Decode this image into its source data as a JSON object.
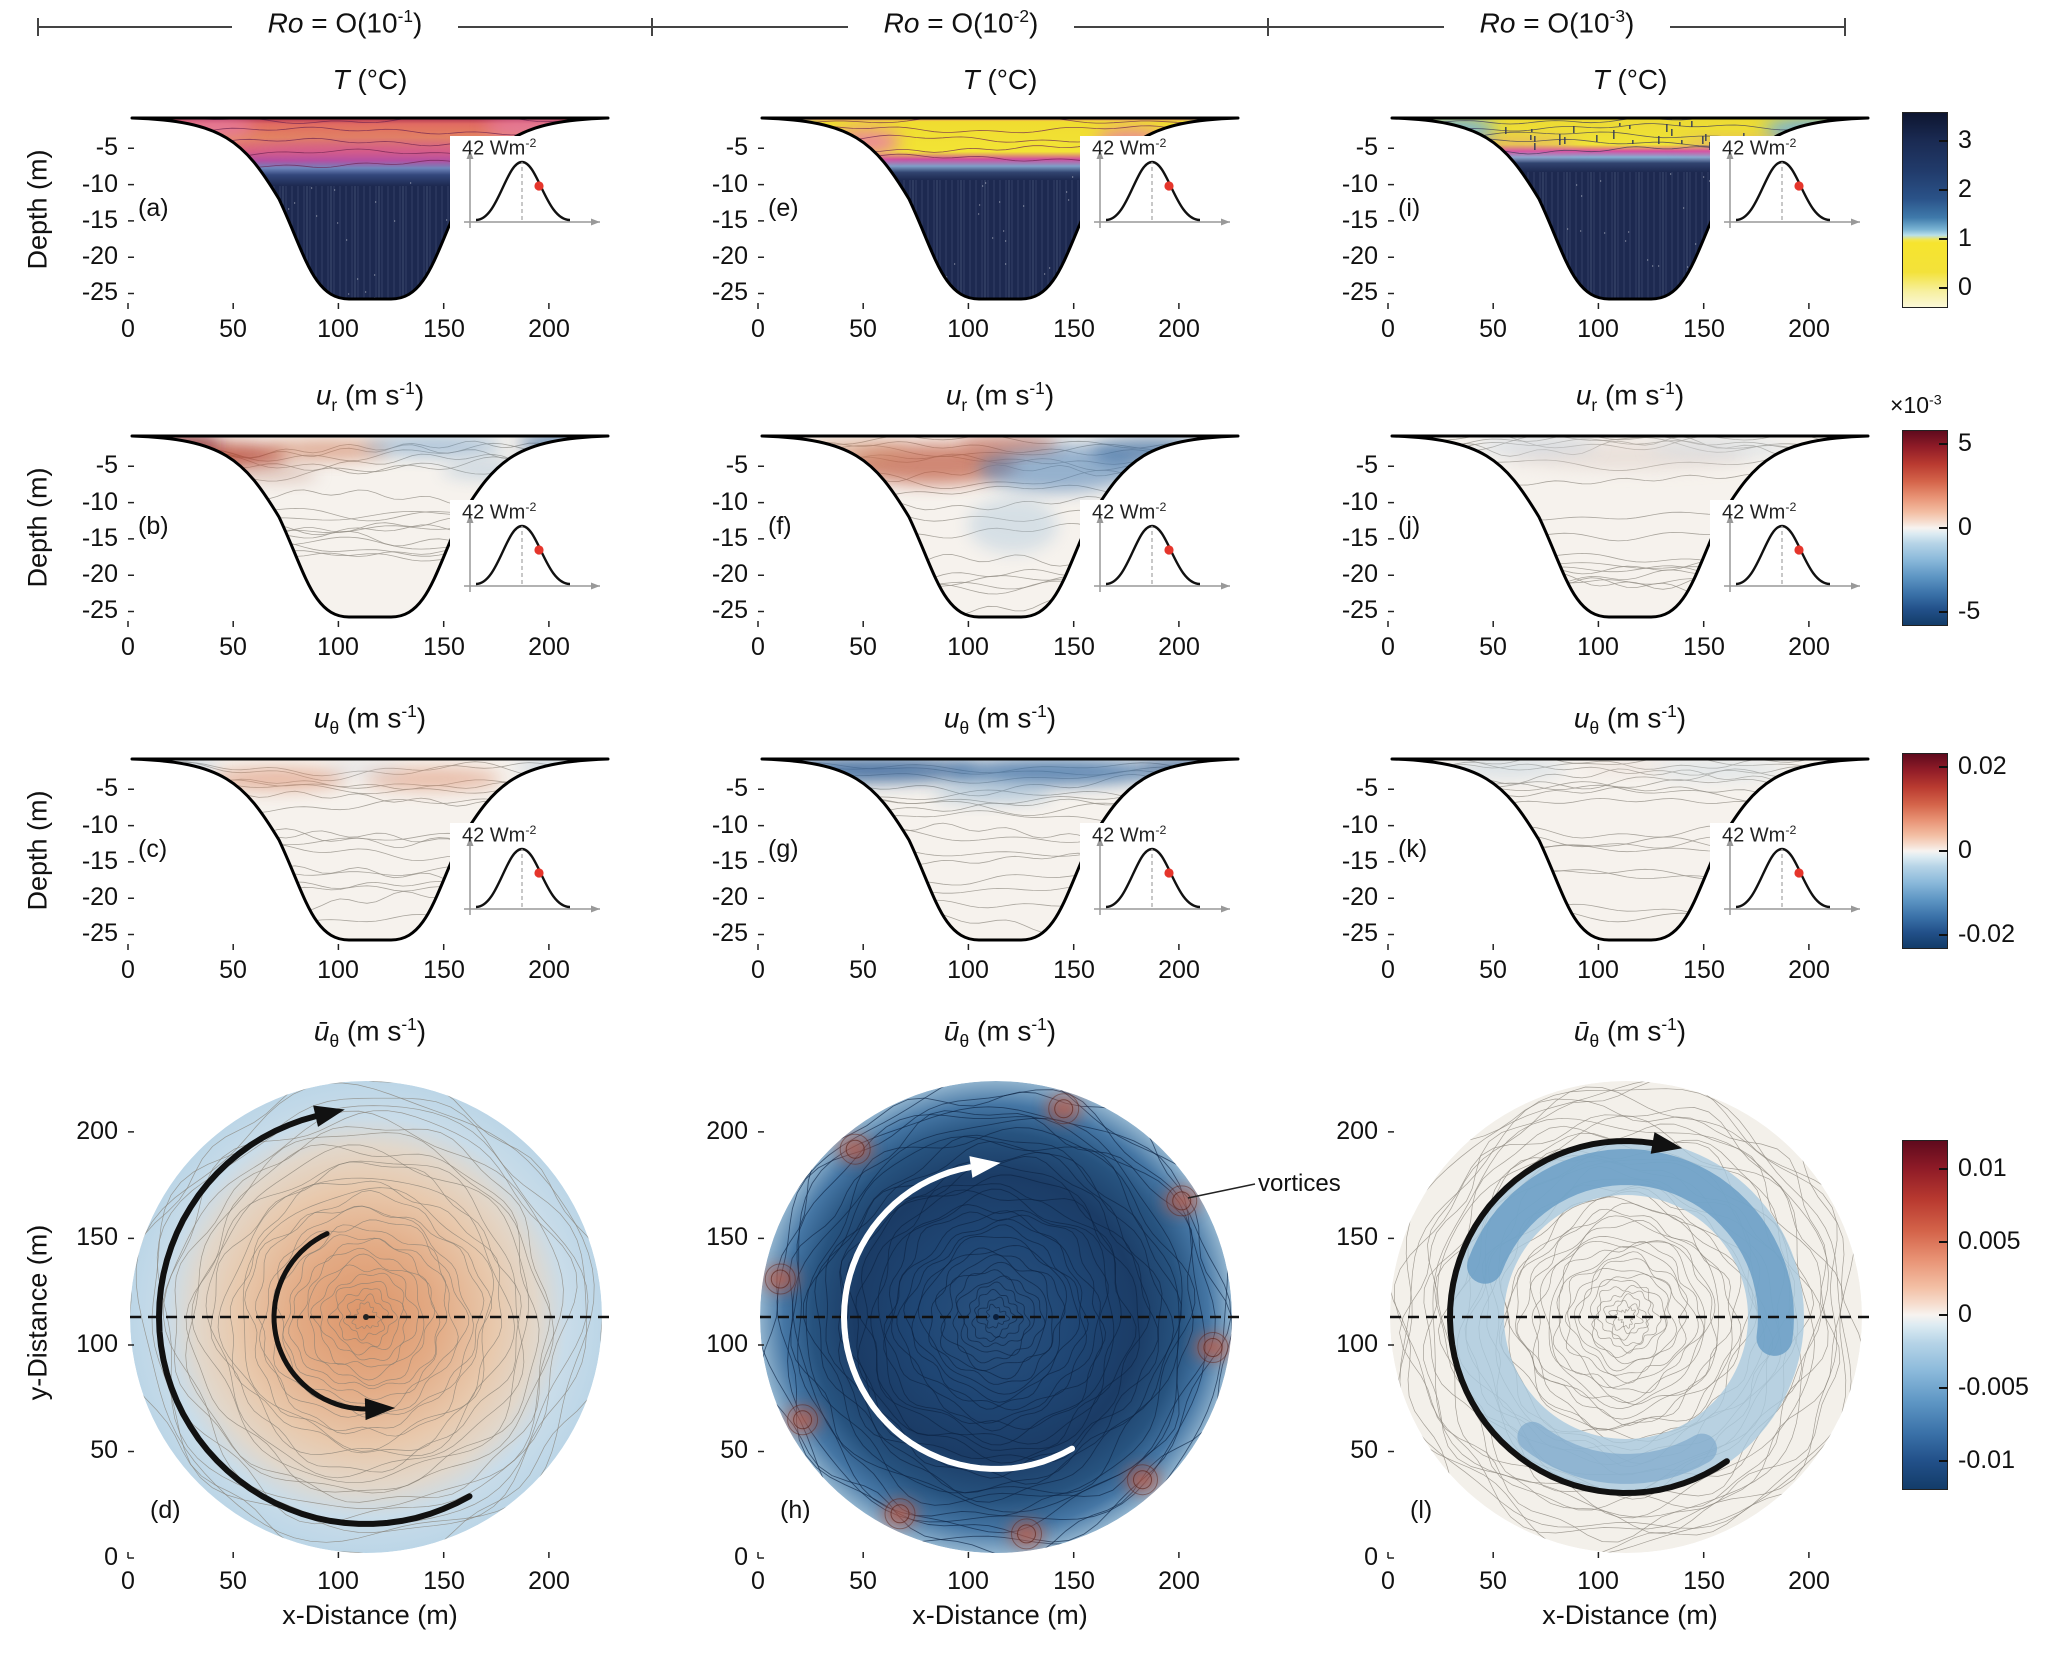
{
  "header": {
    "groups": [
      {
        "label": "*Ro* = O(10^-1^)"
      },
      {
        "label": "*Ro* = O(10^-2^)"
      },
      {
        "label": "*Ro* = O(10^-3^)"
      }
    ]
  },
  "labels": {
    "depth_axis": "Depth (m)",
    "y_distance_axis": "y-Distance (m)",
    "x_distance_axis": "x-Distance (m)",
    "inset": "42 Wm^-2^",
    "vortices": "vortices"
  },
  "chart_data": {
    "type": "heatmap",
    "title": "Temperature and velocity fields in a bowl-shaped basin under 42 W m-2 surface heat loss, for three Rossby number regimes",
    "layout": "4 rows x 3 columns; rows 1-3 are vertical cross-sections (depth vs distance), row 4 is plan view; shared colorbars at right; each cross-section has an inset of the surface flux profile (42 Wm-2) with a red dot on its flank",
    "section_axes": {
      "ylabel": "Depth (m)",
      "x_ticks": [
        0,
        50,
        100,
        150,
        200
      ],
      "x_range": [
        0,
        230
      ],
      "depth_ticks": [
        -5,
        -10,
        -15,
        -20,
        -25
      ],
      "depth_range": [
        0,
        -27
      ]
    },
    "plan_axes": {
      "xlabel": "x-Distance (m)",
      "ylabel": "y-Distance (m)",
      "ticks": [
        0,
        50,
        100,
        150,
        200
      ],
      "range": [
        0,
        230
      ]
    },
    "inset": {
      "label": "42 Wm^-2^",
      "description": "bell-shaped surface heat-flux profile peaking at 42 W m-2, dashed line at peak, red dot on right flank"
    },
    "rows": [
      {
        "kind": "section",
        "title": "*T* (°C)",
        "panels": [
          {
            "label": "(a)",
            "style": "T-a",
            "description": "warm-coloured (≈0.5-1 °C) convective surface layer ~7 m thick with magenta contour bands over near-uniform ≈3 °C (dark navy) deep water"
          },
          {
            "label": "(e)",
            "style": "T-e",
            "description": "colder (≈0 °C, yellow) surface pool rimmed by magenta isotherms over ≈3 °C deep water"
          },
          {
            "label": "(i)",
            "style": "T-i",
            "description": "coldest speckled yellow surface layer with light-blue edge intrusions over ≈3 °C deep water"
          }
        ],
        "colorbar": {
          "palette": "thermal",
          "range": [
            -0.4,
            3.6
          ],
          "ticks": [
            "3",
            "2",
            "1",
            "0"
          ],
          "tick_pos": [
            0.15,
            0.4,
            0.65,
            0.9
          ]
        }
      },
      {
        "kind": "section",
        "title": "*u*_r_ (m s^-1^)",
        "panels": [
          {
            "label": "(b)",
            "style": "ur-a",
            "description": "alternating radial inflow (blue) / outflow (red) cells of O(5e-3 m/s) confined to the surface layer"
          },
          {
            "label": "(f)",
            "style": "ur-b",
            "description": "organized radial exchange: red outflow left-of-centre, blue inflow on the right, weak interior return flow"
          },
          {
            "label": "(j)",
            "style": "ur-c",
            "description": "very weak radial velocities; mostly near-zero with faint contours"
          }
        ],
        "colorbar": {
          "palette": "diverging",
          "multiplier": "×10^-3^",
          "range": [
            -0.0058,
            0.0058
          ],
          "ticks": [
            "5",
            "0",
            "-5"
          ],
          "tick_pos": [
            0.07,
            0.5,
            0.93
          ]
        }
      },
      {
        "kind": "section",
        "title": "*u*_θ_ (m s^-1^)",
        "panels": [
          {
            "label": "(c)",
            "style": "ut-a",
            "description": "weak positive (red, ≈+0.005 m/s) azimuthal flow patches in the surface layer"
          },
          {
            "label": "(g)",
            "style": "ut-b",
            "description": "negative (blue, ≈-0.02 m/s) azimuthal jet filling the surface layer"
          },
          {
            "label": "(k)",
            "style": "ut-c",
            "description": "very weak azimuthal flow, faint blue near the surface"
          }
        ],
        "colorbar": {
          "palette": "diverging",
          "range": [
            -0.023,
            0.023
          ],
          "ticks": [
            "0.02",
            "0",
            "-0.02"
          ],
          "tick_pos": [
            0.07,
            0.5,
            0.93
          ]
        }
      },
      {
        "kind": "plan",
        "title": "*ū*_θ_ (m s^-1^)",
        "panels": [
          {
            "label": "(d)",
            "style": "plan-d",
            "arrow_color": "black",
            "description": "depth-averaged azimuthal velocity: positive (orange) core rotating one way (inner arrow) inside a negative (pale blue) rim current (outer black arrow); dashed diameter line"
          },
          {
            "label": "(h)",
            "style": "plan-h",
            "arrow_color": "white",
            "annotation": "vortices",
            "description": "strong negative basin-scale gyre (dark blue, white arrow) with red rim vortices around the perimeter"
          },
          {
            "label": "(l)",
            "style": "plan-l",
            "arrow_color": "black",
            "description": "narrow mid-radius negative (blue) jet marked by black arrow; elsewhere weak fine-scale contours"
          }
        ],
        "colorbar": {
          "palette": "diverging",
          "range": [
            -0.012,
            0.012
          ],
          "ticks": [
            "0.01",
            "0.005",
            "0",
            "-0.005",
            "-0.01"
          ],
          "tick_pos": [
            0.083,
            0.292,
            0.5,
            0.708,
            0.917
          ]
        }
      }
    ]
  }
}
